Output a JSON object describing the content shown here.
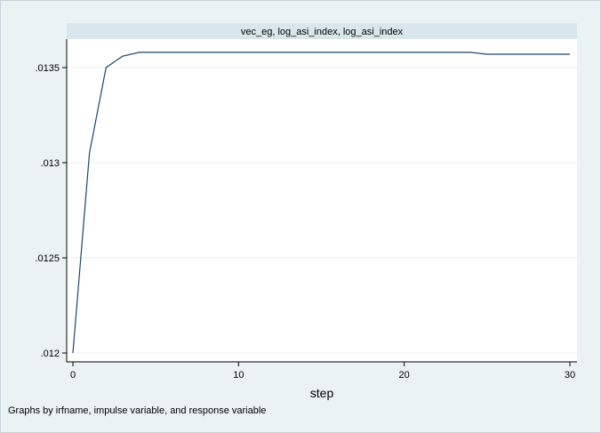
{
  "chart_data": {
    "type": "line",
    "title": "vec_eg, log_asi_index, log_asi_index",
    "xlabel": "step",
    "ylabel": "",
    "note": "Graphs by irfname, impulse variable, and response variable",
    "xlim": [
      0,
      30
    ],
    "ylim": [
      0.012,
      0.0136
    ],
    "x_ticks": [
      0,
      10,
      20,
      30
    ],
    "x_tick_labels": [
      "0",
      "10",
      "20",
      "30"
    ],
    "y_ticks": [
      0.012,
      0.0125,
      0.013,
      0.0135
    ],
    "y_tick_labels": [
      ".012",
      ".0125",
      ".013",
      ".0135"
    ],
    "grid": true,
    "line_color": "#1a476f",
    "series": [
      {
        "x": [
          0,
          1,
          2,
          3,
          4,
          5,
          6,
          7,
          8,
          9,
          10,
          11,
          12,
          13,
          14,
          15,
          16,
          17,
          18,
          19,
          20,
          21,
          22,
          23,
          24,
          25,
          26,
          27,
          28,
          29,
          30
        ],
        "values": [
          0.012,
          0.01305,
          0.0135,
          0.01356,
          0.01358,
          0.01358,
          0.01358,
          0.01358,
          0.01358,
          0.01358,
          0.01358,
          0.01358,
          0.01358,
          0.01358,
          0.01358,
          0.01358,
          0.01358,
          0.01358,
          0.01358,
          0.01358,
          0.01358,
          0.01358,
          0.01358,
          0.01358,
          0.01358,
          0.01357,
          0.01357,
          0.01357,
          0.01357,
          0.01357,
          0.01357
        ]
      }
    ]
  }
}
